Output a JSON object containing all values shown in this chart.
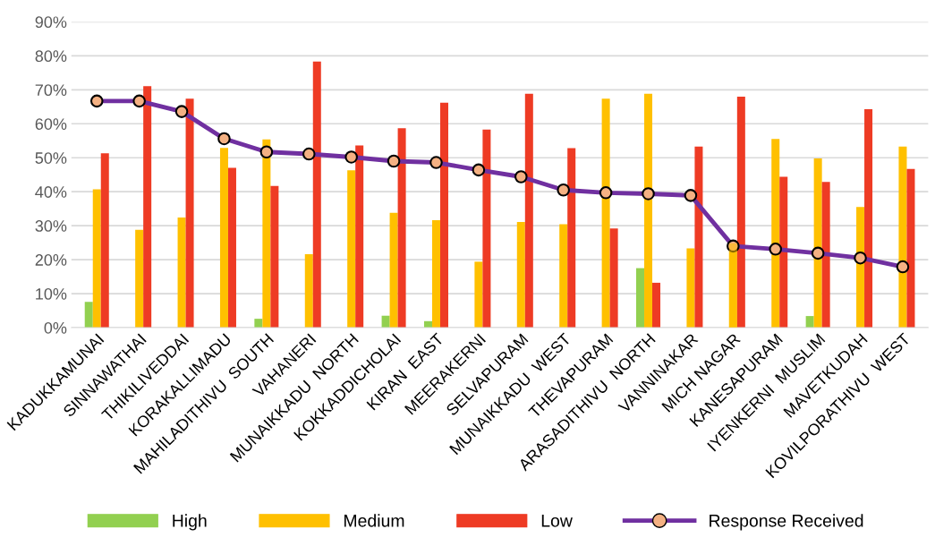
{
  "chart_data": {
    "type": "bar",
    "categories": [
      "KADUKKAMUNAI",
      "SINNAWATHAI",
      "THIKILIVEDDAI",
      "KORAKALLIMADU",
      "MAHILADITHIVU  SOUTH",
      "VAHANERI",
      "MUNAIKKADU  NORTH",
      "KOKKADDICHOLAI",
      "KIRAN  EAST",
      "MEERAKERNI",
      "SELVAPURAM",
      "MUNAIKKADU  WEST",
      "THEVAPURAM",
      "ARASADITHIVU  NORTH",
      "VANNINAKAR",
      "MICH NAGAR",
      "KANESAPURAM",
      "IYENKERNI  MUSLIM",
      "MAVETKUDAH",
      "KOVILPORATHIVU  WEST"
    ],
    "series": [
      {
        "name": "High",
        "color": "#92d050",
        "values": [
          7.6,
          null,
          null,
          null,
          2.6,
          null,
          null,
          3.5,
          1.9,
          null,
          null,
          null,
          null,
          17.5,
          null,
          null,
          null,
          3.4,
          null,
          null
        ]
      },
      {
        "name": "Medium",
        "color": "#ffc000",
        "values": [
          40.7,
          28.8,
          32.4,
          52.9,
          55.4,
          21.6,
          46.3,
          33.8,
          31.6,
          19.4,
          31.1,
          30.4,
          67.4,
          68.8,
          23.3,
          24.8,
          55.5,
          49.8,
          35.5,
          53.3
        ]
      },
      {
        "name": "Low",
        "color": "#ee3b24",
        "values": [
          51.3,
          71.1,
          67.4,
          47.0,
          41.7,
          78.3,
          53.6,
          58.7,
          66.2,
          58.3,
          68.8,
          52.8,
          29.2,
          13.2,
          53.3,
          68.0,
          44.4,
          42.9,
          64.3,
          46.7
        ]
      },
      {
        "name": "Response Received",
        "type": "line",
        "color": "#7030a0",
        "marker": "circle",
        "values": [
          66.7,
          66.7,
          63.6,
          55.6,
          51.7,
          51.1,
          50.2,
          49.0,
          48.6,
          46.4,
          44.4,
          40.5,
          39.7,
          39.4,
          38.9,
          24.0,
          23.1,
          21.9,
          20.5,
          17.9
        ]
      }
    ],
    "ylim": [
      0,
      90
    ],
    "yticks": [
      {
        "value": 0,
        "label": "0%"
      },
      {
        "value": 10,
        "label": "10%"
      },
      {
        "value": 20,
        "label": "20%"
      },
      {
        "value": 30,
        "label": "30%"
      },
      {
        "value": 40,
        "label": "40%"
      },
      {
        "value": 50,
        "label": "50%"
      },
      {
        "value": 60,
        "label": "60%"
      },
      {
        "value": 70,
        "label": "70%"
      },
      {
        "value": 80,
        "label": "80%"
      },
      {
        "value": 90,
        "label": "90%"
      }
    ],
    "grid": "y",
    "legend": "bottom"
  }
}
